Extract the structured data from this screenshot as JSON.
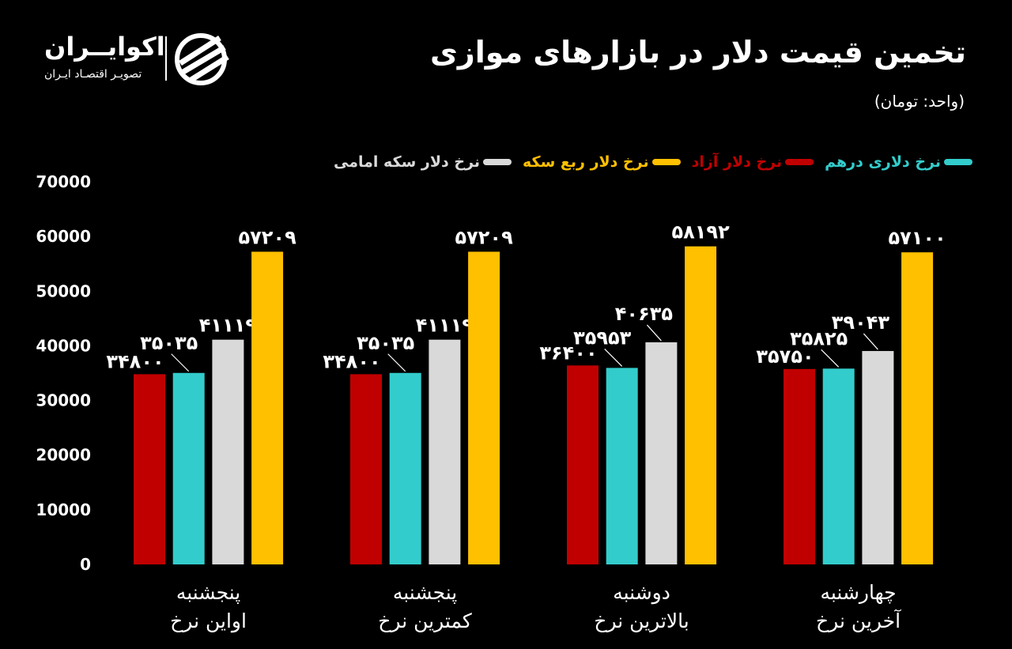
{
  "header": {
    "title": "تخمین قیمت دلار در بازارهای موازی",
    "unit": "(واحد: تومان)"
  },
  "logo": {
    "name": "اکوایــران",
    "subtitle": "تصویـر اقتصـاد ایـران"
  },
  "chart_data": {
    "type": "bar",
    "title": "تخمین قیمت دلار در بازارهای موازی",
    "ylabel": "(واحد: تومان)",
    "ylim": [
      0,
      70000
    ],
    "yticks": [
      "0",
      "10000",
      "20000",
      "30000",
      "40000",
      "50000",
      "60000",
      "70000"
    ],
    "grid": false,
    "legend_placement": "top",
    "categories": [
      {
        "line1": "پنجشنبه",
        "line2": "اواین نرخ"
      },
      {
        "line1": "پنجشنبه",
        "line2": "کمترین نرخ"
      },
      {
        "line1": "دوشنبه",
        "line2": "بالاترین نرخ"
      },
      {
        "line1": "چهارشنبه",
        "line2": "آخرین نرخ"
      }
    ],
    "series": [
      {
        "name": "نرخ دلار آزاد",
        "color": "#c00000",
        "values": [
          34800,
          34800,
          36400,
          35750
        ]
      },
      {
        "name": "نرخ دلاری درهم",
        "color": "#33cccc",
        "values": [
          35035,
          35035,
          35953,
          35825
        ]
      },
      {
        "name": "نرخ دلار سکه امامی",
        "color": "#d9d9d9",
        "values": [
          41119,
          41119,
          40635,
          39043
        ]
      },
      {
        "name": "نرخ دلار ربع سکه",
        "color": "#ffc000",
        "values": [
          57209,
          57209,
          58192,
          57100
        ]
      }
    ],
    "legend_order": [
      1,
      0,
      3,
      2
    ]
  }
}
